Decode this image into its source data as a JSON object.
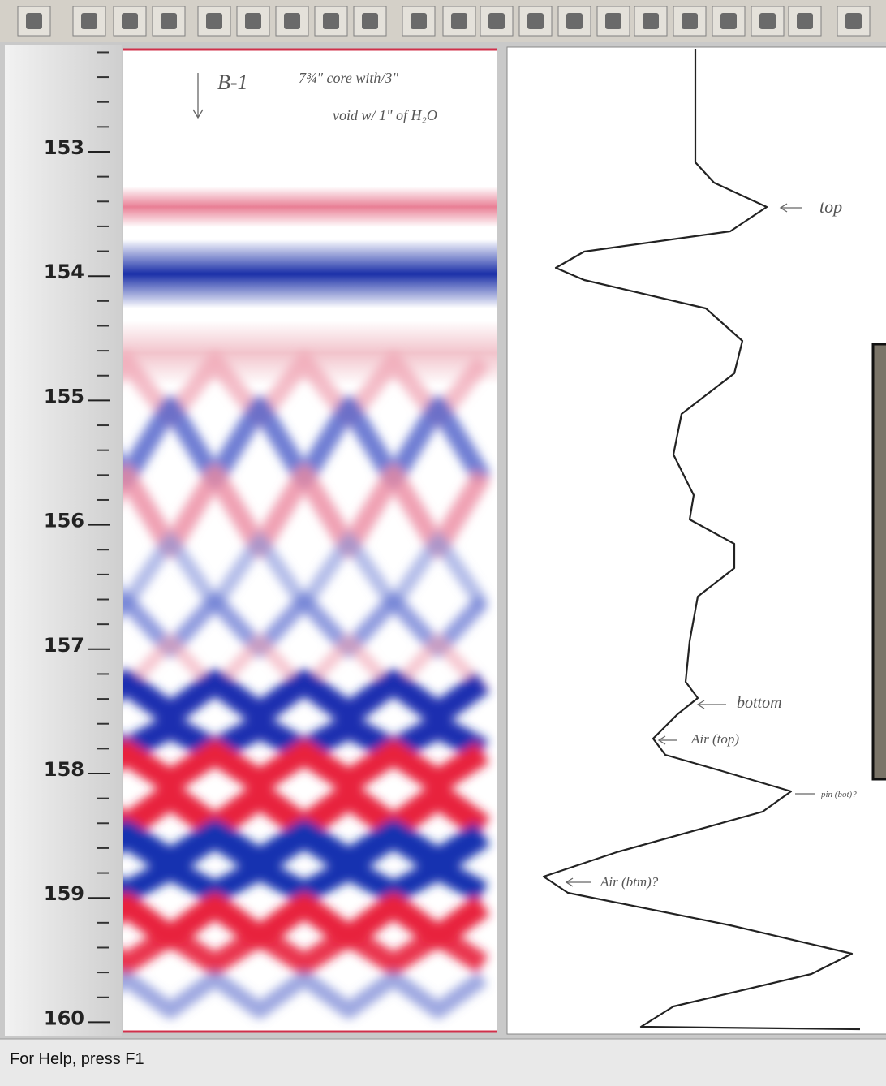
{
  "ruler": {
    "labels": [
      153,
      154,
      155,
      156,
      157,
      158,
      159,
      160
    ]
  },
  "annotations": {
    "well": "B-1",
    "core": "7¾\" core with/3\"",
    "void": "void w/ 1\" of H₂O",
    "top": "top",
    "bottom": "bottom",
    "air_top": "Air (top)",
    "pin": "pin (bot)?",
    "air_bottom": "Air (btm)?"
  },
  "status_bar": {
    "text": "For Help, press F1"
  }
}
